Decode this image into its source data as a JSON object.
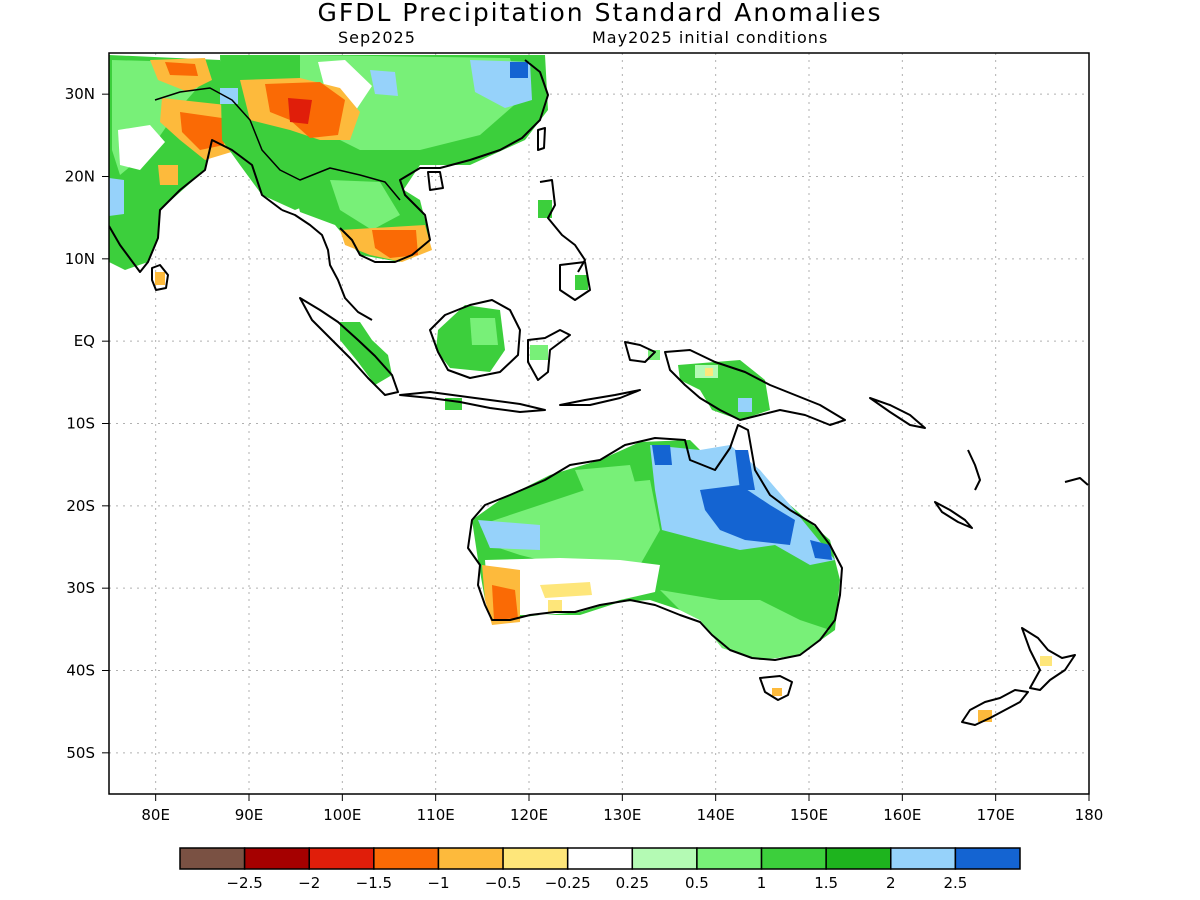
{
  "title": "GFDL Precipitation Standard Anomalies",
  "subtitle_left": "Sep2025",
  "subtitle_right": "May2025 initial conditions",
  "map": {
    "lon_range": [
      75,
      180
    ],
    "lat_range": [
      -55,
      35
    ],
    "lat_labels": [
      {
        "lat": 30,
        "text": "30N"
      },
      {
        "lat": 20,
        "text": "20N"
      },
      {
        "lat": 10,
        "text": "10N"
      },
      {
        "lat": 0,
        "text": "EQ"
      },
      {
        "lat": -10,
        "text": "10S"
      },
      {
        "lat": -20,
        "text": "20S"
      },
      {
        "lat": -30,
        "text": "30S"
      },
      {
        "lat": -40,
        "text": "40S"
      },
      {
        "lat": -50,
        "text": "50S"
      }
    ],
    "lon_labels": [
      {
        "lon": 80,
        "text": "80E"
      },
      {
        "lon": 90,
        "text": "90E"
      },
      {
        "lon": 100,
        "text": "100E"
      },
      {
        "lon": 110,
        "text": "110E"
      },
      {
        "lon": 120,
        "text": "120E"
      },
      {
        "lon": 130,
        "text": "130E"
      },
      {
        "lon": 140,
        "text": "140E"
      },
      {
        "lon": 150,
        "text": "150E"
      },
      {
        "lon": 160,
        "text": "160E"
      },
      {
        "lon": 170,
        "text": "170E"
      },
      {
        "lon": 180,
        "text": "180"
      }
    ]
  },
  "colorbar": {
    "colors": [
      "#7a5143",
      "#a50000",
      "#e01e0a",
      "#fa6a05",
      "#fdba3c",
      "#fee67a",
      "#ffffff",
      "#b4fab4",
      "#78f078",
      "#3ccf3c",
      "#1eb41e",
      "#96d2fa",
      "#1464d2"
    ],
    "labels": [
      "−2.5",
      "−2",
      "−1.5",
      "−1",
      "−0.5",
      "−0.25",
      "0.25",
      "0.5",
      "1",
      "1.5",
      "2",
      "2.5"
    ]
  }
}
